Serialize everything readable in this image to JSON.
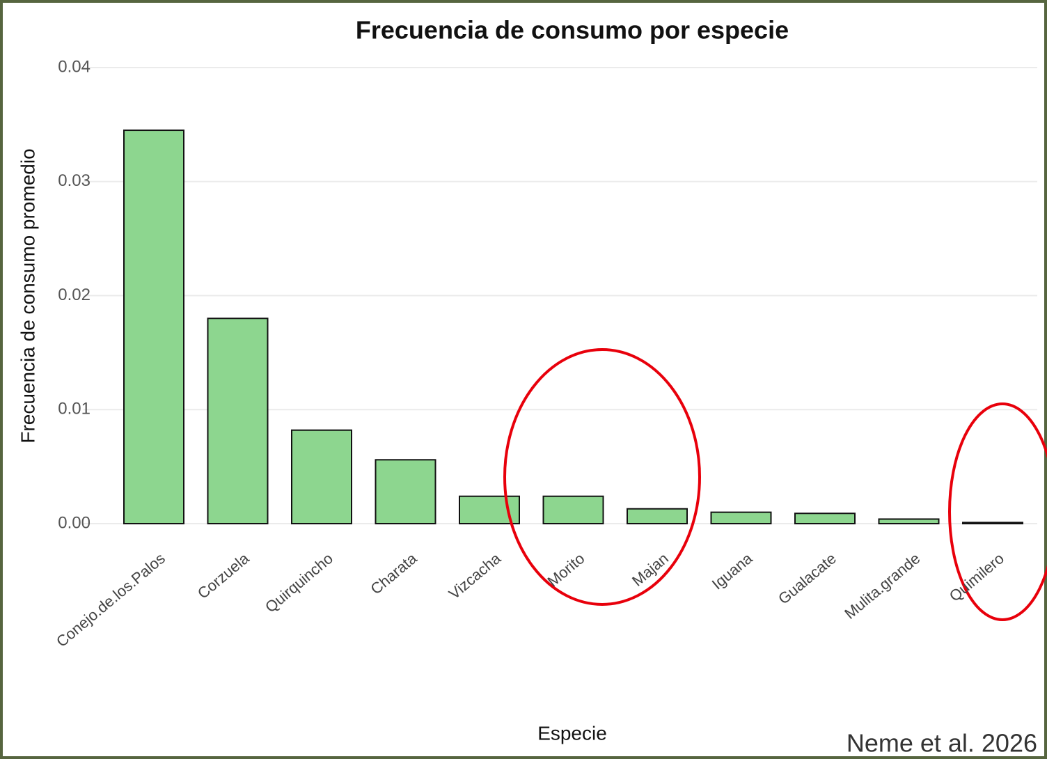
{
  "chart_data": {
    "type": "bar",
    "title": "Frecuencia de consumo por especie",
    "x_label": "Especie",
    "y_label": "Frecuencia de consumo promedio",
    "categories": [
      "Conejo.de.los.Palos",
      "Corzuela",
      "Quirquincho",
      "Charata",
      "Vizcacha",
      "Morito",
      "Majan",
      "Iguana",
      "Gualacate",
      "Mulita.grande",
      "Quimilero"
    ],
    "values": [
      0.0345,
      0.018,
      0.0082,
      0.0056,
      0.0024,
      0.0024,
      0.0013,
      0.001,
      0.0009,
      0.0004,
      0.0001
    ],
    "color": "#8dd68f",
    "ylim": [
      0,
      0.04
    ],
    "yticks": [
      {
        "value": 0,
        "label": "0.00"
      },
      0.01,
      0.02,
      0.03,
      0.04
    ],
    "grid": true,
    "citation": "Neme et al. 2026"
  }
}
